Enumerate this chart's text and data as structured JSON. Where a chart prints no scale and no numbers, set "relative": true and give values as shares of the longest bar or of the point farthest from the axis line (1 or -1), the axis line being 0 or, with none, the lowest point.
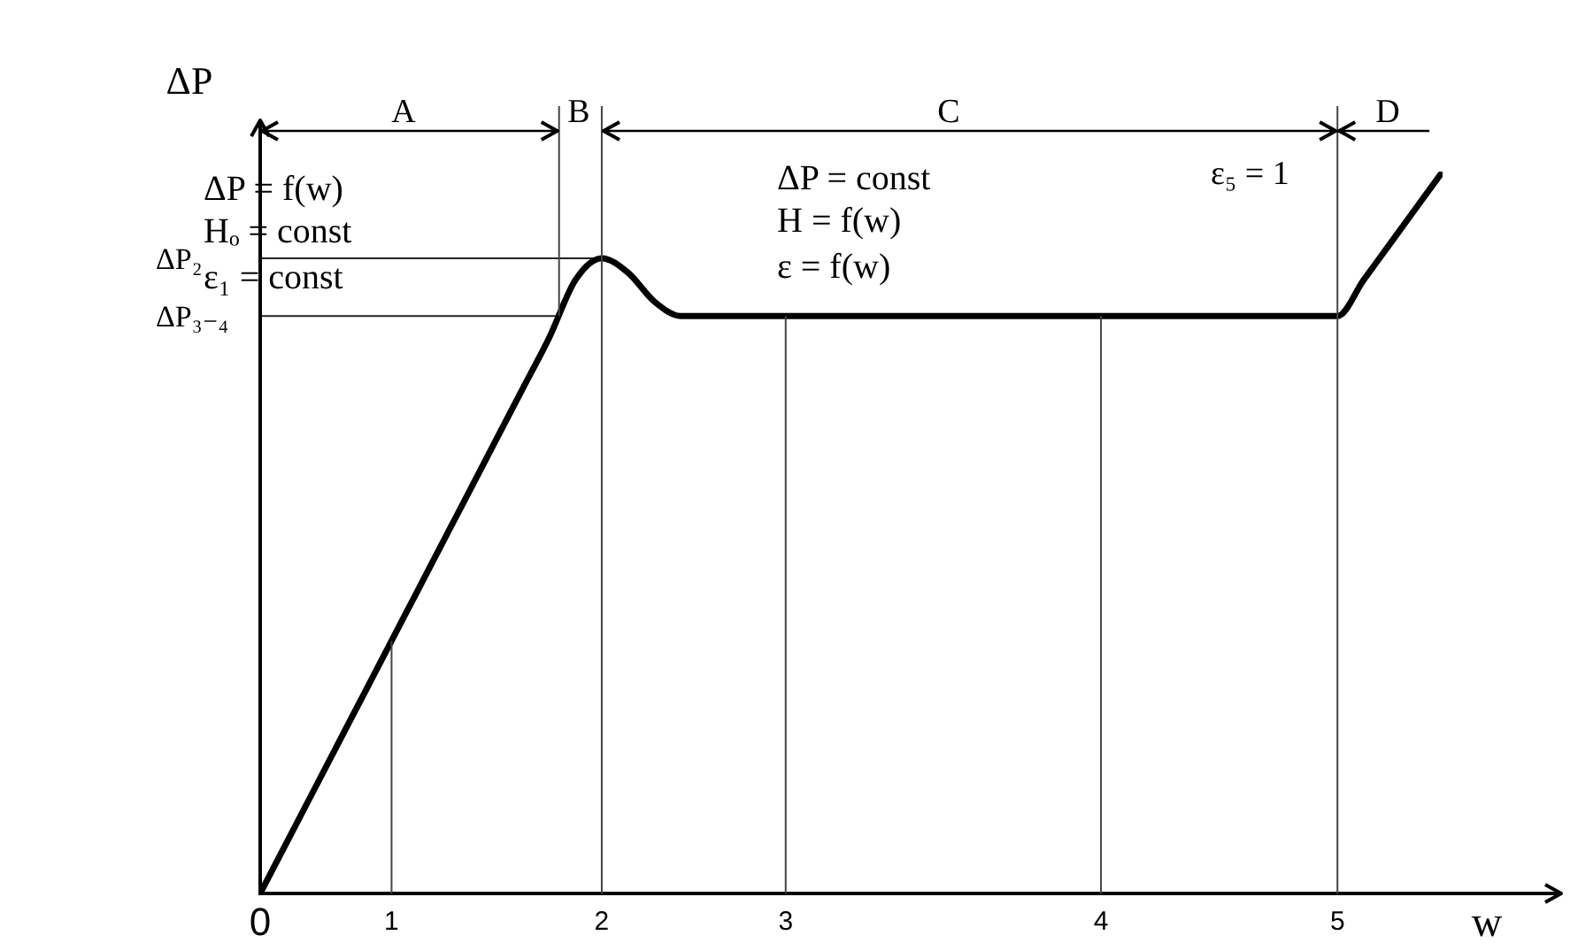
{
  "chart_data": {
    "type": "line",
    "xlabel": "w",
    "ylabel": "ΔP",
    "relative": true,
    "categories": [
      "0",
      null,
      null,
      null,
      null,
      "1",
      null,
      null,
      null,
      null,
      null,
      null,
      null,
      "2",
      null,
      null,
      null,
      null,
      null,
      null,
      "3",
      null,
      null,
      null,
      null,
      null,
      null,
      null,
      null,
      null,
      null,
      null,
      "4",
      null,
      null,
      null,
      null,
      null,
      null,
      null,
      null,
      "5",
      null,
      null,
      null,
      null
    ],
    "series": [
      {
        "color": "#000000",
        "values": [
          0,
          0.07,
          0.14,
          0.21,
          0.28,
          0.35,
          0.42,
          0.49,
          0.56,
          0.63,
          0.7,
          0.77,
          0.85,
          0.88,
          0.86,
          0.82,
          0.8,
          0.8,
          0.8,
          0.8,
          0.8,
          0.8,
          0.8,
          0.8,
          0.8,
          0.8,
          0.8,
          0.8,
          0.8,
          0.8,
          0.8,
          0.8,
          0.8,
          0.8,
          0.8,
          0.8,
          0.8,
          0.8,
          0.8,
          0.8,
          0.8,
          0.8,
          0.85,
          0.9,
          0.95,
          1
        ]
      }
    ],
    "grid": "x",
    "line_style": "solid",
    "ref_lines": [
      {
        "axis": "y",
        "value": 0.88,
        "label": "ΔP₂"
      },
      {
        "axis": "y",
        "value": 0.8,
        "label": "ΔP₃₋₄"
      }
    ],
    "annotations": [
      "A",
      "B",
      "C",
      "D",
      "ΔP = f(w)",
      "Hₒ = const",
      "ε₁ = const",
      "ΔP = const",
      "H = f(w)",
      "ε = f(w)",
      "ε₅ = 1"
    ]
  }
}
